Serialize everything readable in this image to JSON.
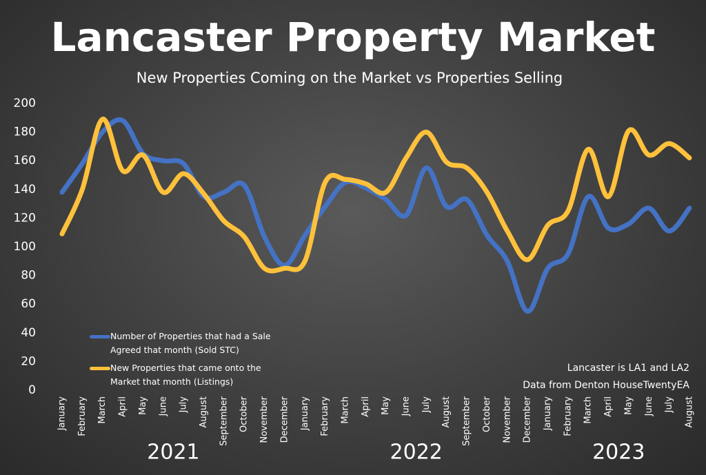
{
  "chart_data": {
    "type": "line",
    "title": "Lancaster Property Market",
    "subtitle": "New Properties Coming on the Market vs Properties Selling",
    "annotations": [
      "Lancaster is LA1 and LA2",
      "Data from Denton HouseTwentyEA"
    ],
    "categories": [
      "January",
      "February",
      "March",
      "April",
      "May",
      "June",
      "July",
      "August",
      "September",
      "October",
      "November",
      "December",
      "January",
      "February",
      "March",
      "April",
      "May",
      "June",
      "July",
      "August",
      "September",
      "October",
      "November",
      "December",
      "January",
      "February",
      "March",
      "April",
      "May",
      "June",
      "July",
      "August"
    ],
    "years": [
      "2021",
      "2022",
      "2023"
    ],
    "series": [
      {
        "name": "Number of Properties that had a Sale Agreed  that month (Sold STC)",
        "color": "#4472c4",
        "values": [
          138,
          158,
          180,
          188,
          165,
          160,
          158,
          135,
          138,
          143,
          107,
          87,
          108,
          128,
          145,
          141,
          133,
          122,
          155,
          128,
          133,
          108,
          90,
          55,
          85,
          95,
          135,
          113,
          116,
          127,
          111,
          127
        ]
      },
      {
        "name": "New Properties that came onto the Market that month  (Listings)",
        "color": "#ffc13b",
        "values": [
          109,
          140,
          189,
          153,
          164,
          138,
          151,
          137,
          118,
          107,
          85,
          85,
          90,
          145,
          147,
          144,
          138,
          162,
          180,
          159,
          155,
          138,
          111,
          91,
          115,
          125,
          168,
          135,
          181,
          164,
          172,
          162
        ]
      }
    ],
    "ylim": [
      0,
      200
    ],
    "yticks": [
      0,
      20,
      40,
      60,
      80,
      100,
      120,
      140,
      160,
      180,
      200
    ]
  }
}
